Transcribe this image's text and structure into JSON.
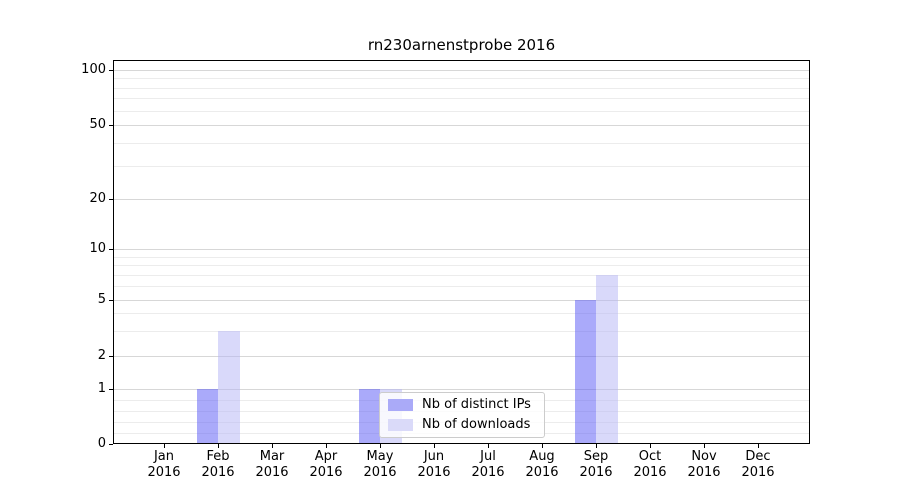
{
  "chart_data": {
    "type": "bar",
    "title": "rn230arnenstprobe 2016",
    "categories": [
      "Jan 2016",
      "Feb 2016",
      "Mar 2016",
      "Apr 2016",
      "May 2016",
      "Jun 2016",
      "Jul 2016",
      "Aug 2016",
      "Sep 2016",
      "Oct 2016",
      "Nov 2016",
      "Dec 2016"
    ],
    "series": [
      {
        "name": "Nb of distinct IPs",
        "values": [
          0,
          1,
          0,
          0,
          1,
          0,
          0,
          0,
          5,
          0,
          0,
          0
        ],
        "bar_color": "rgba(85,85,245,0.5)",
        "legend_color": "#aaaaf8"
      },
      {
        "name": "Nb of downloads",
        "values": [
          0,
          3,
          0,
          0,
          1,
          0,
          0,
          0,
          7,
          0,
          0,
          0
        ],
        "bar_color": "rgba(180,180,245,0.5)",
        "legend_color": "#dadaf9"
      }
    ],
    "xlabel": "",
    "ylabel": "",
    "y_axis": {
      "tick_values": [
        0,
        1,
        2,
        5,
        10,
        20,
        50,
        100
      ],
      "minor_gridline_values": [
        0.2,
        0.4,
        0.6,
        0.8,
        3,
        4,
        6,
        7,
        8,
        9,
        30,
        40,
        60,
        70,
        80,
        90
      ],
      "scale": "linear from 0 to 1, logarithmic above 1",
      "range": [
        0,
        114
      ]
    },
    "grid": {
      "major_color": "#d7d7d7",
      "minor_color": "#ececec",
      "enabled": true
    },
    "legend": {
      "position": "lower center",
      "labels": [
        "Nb of distinct IPs",
        "Nb of downloads"
      ]
    }
  }
}
